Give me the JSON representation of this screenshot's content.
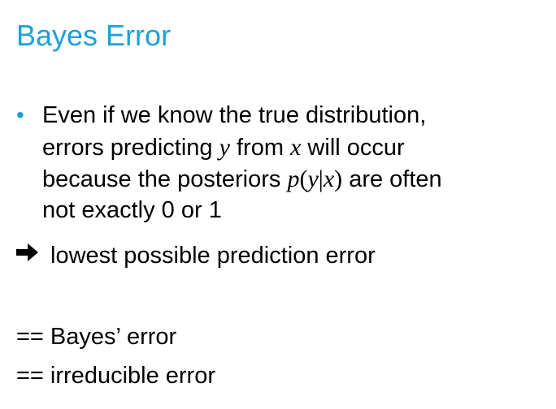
{
  "title": "Bayes Error",
  "bullet": {
    "line1": "Even if we know the true distribution,",
    "line2_a": "errors predicting ",
    "var_y": "y",
    "line2_b": " from ",
    "var_x": "x",
    "line2_c": " will occur",
    "line3_a": "because the posteriors ",
    "post_p": "p",
    "post_open": "(",
    "post_y": "y",
    "post_bar": "|",
    "post_x": "x",
    "post_close": ")",
    "line3_b": " are often",
    "line4": "not exactly 0 or 1"
  },
  "arrow_text": "lowest possible prediction error",
  "eq1": "== Bayes’ error",
  "eq2": "== irreducible error",
  "colors": {
    "accent": "#1ba1d8",
    "text": "#000000"
  },
  "icons": {
    "bullet": "bullet-dot-icon",
    "arrow": "right-arrow-icon"
  }
}
